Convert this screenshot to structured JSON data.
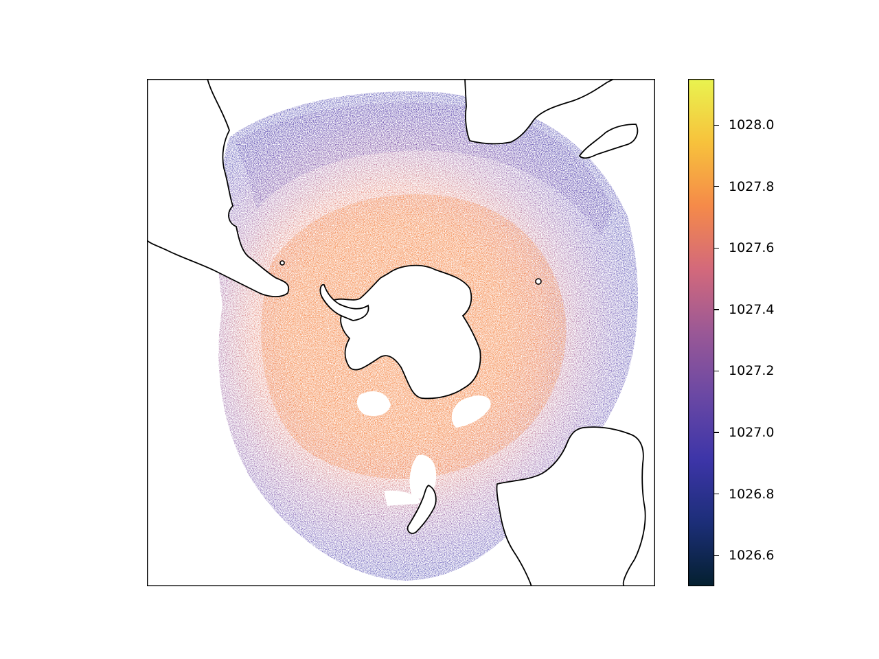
{
  "figure": {
    "projection": "south-polar-stereographic",
    "frame": "black",
    "field_description": "potential density anomaly scatter around Antarctica",
    "land_color": "#ffffff",
    "coastline_color": "#000000"
  },
  "colorbar": {
    "colormap": "cmocean-thermal",
    "vmin": 1026.5,
    "vmax": 1028.15,
    "ticks": [
      "1026.6",
      "1026.8",
      "1027.0",
      "1027.2",
      "1027.4",
      "1027.6",
      "1027.8",
      "1028.0"
    ],
    "tick_values": [
      1026.6,
      1026.8,
      1027.0,
      1027.2,
      1027.4,
      1027.6,
      1027.8,
      1028.0
    ],
    "colors": [
      "#04202f",
      "#1c2e78",
      "#3d35a8",
      "#6a48a4",
      "#9a5896",
      "#d3697b",
      "#f58a49",
      "#f7c23c",
      "#e9f34f"
    ]
  }
}
